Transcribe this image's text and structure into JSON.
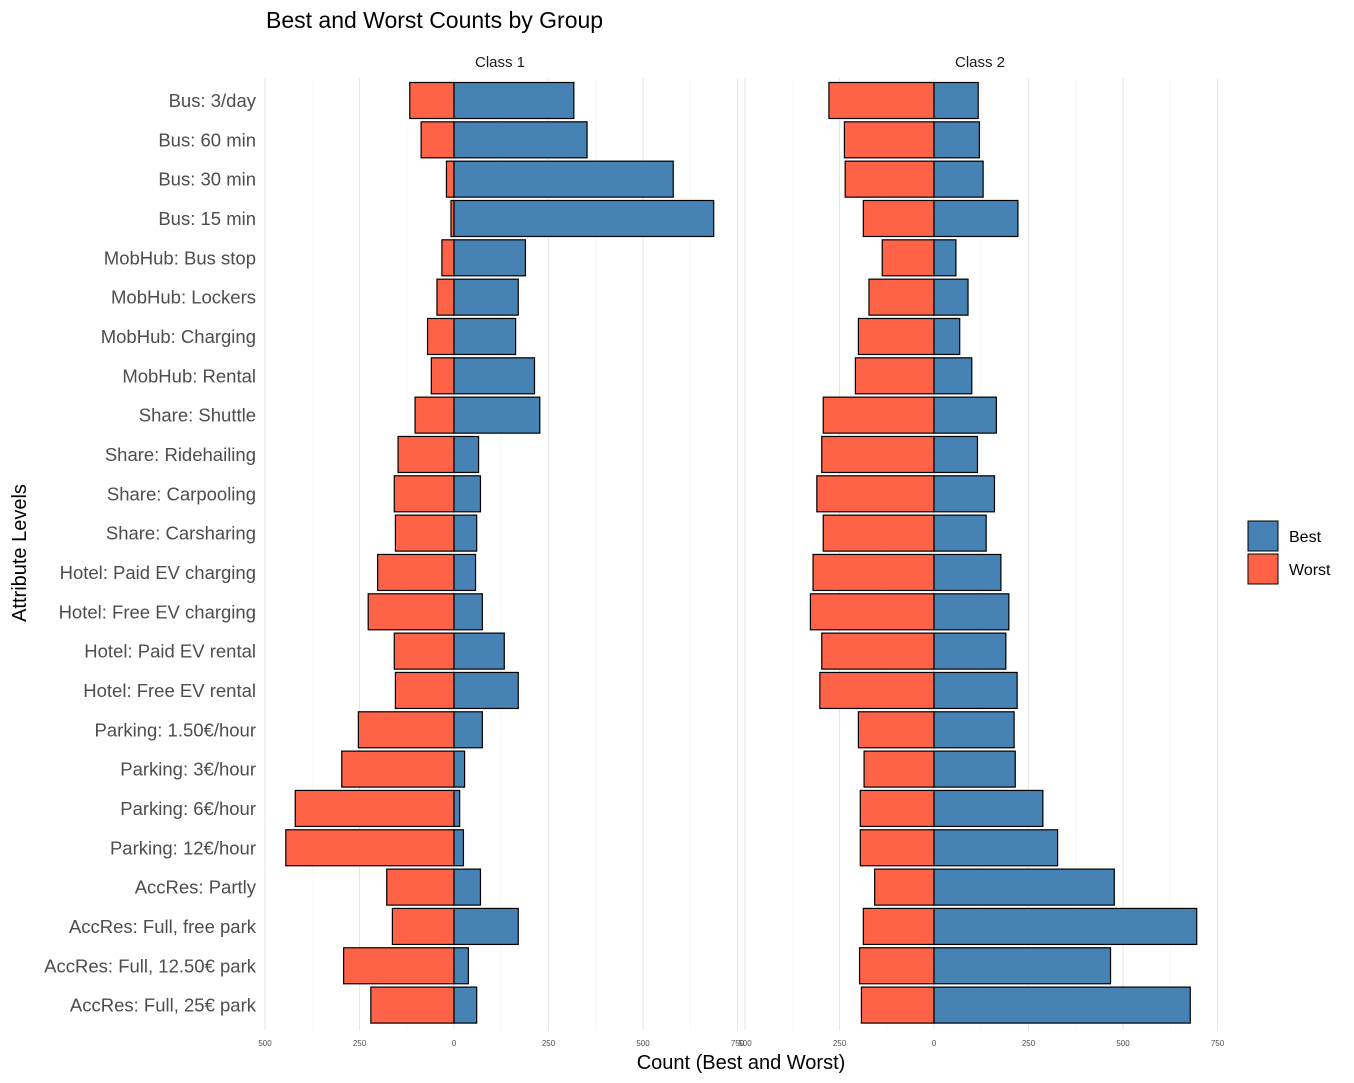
{
  "chart_data": {
    "type": "bar",
    "orientation": "horizontal",
    "title": "Best and Worst Counts by Group",
    "xlabel": "Count (Best and Worst)",
    "ylabel": "Attribute Levels",
    "xlim": [
      -500,
      750
    ],
    "x_ticks": [
      "500",
      "250",
      "0",
      "250",
      "500",
      "750"
    ],
    "grid": true,
    "legend": {
      "position": "right",
      "entries": [
        {
          "label": "Best",
          "color": "#4682B4"
        },
        {
          "label": "Worst",
          "color": "#FF6347"
        }
      ]
    },
    "colors": {
      "Best": "#4682B4",
      "Worst": "#FF6347"
    },
    "categories": [
      "Bus: 3/day",
      "Bus: 60 min",
      "Bus: 30 min",
      "Bus: 15 min",
      "MobHub: Bus stop",
      "MobHub: Lockers",
      "MobHub: Charging",
      "MobHub: Rental",
      "Share: Shuttle",
      "Share: Ridehailing",
      "Share: Carpooling",
      "Share: Carsharing",
      "Hotel: Paid EV charging",
      "Hotel: Free EV charging",
      "Hotel: Paid EV rental",
      "Hotel: Free EV rental",
      "Parking: 1.50€/hour",
      "Parking: 3€/hour",
      "Parking: 6€/hour",
      "Parking: 12€/hour",
      "AccRes: Partly",
      "AccRes: Full, free park",
      "AccRes: Full, 12.50€ park",
      "AccRes: Full, 25€ park"
    ],
    "panels": [
      {
        "name": "Class 1",
        "series": [
          {
            "name": "Best",
            "values": [
              317,
              352,
              580,
              687,
              189,
              170,
              163,
              213,
              227,
              65,
              70,
              60,
              57,
              75,
              133,
              170,
              75,
              28,
              15,
              25,
              70,
              170,
              38,
              60
            ]
          },
          {
            "name": "Worst",
            "values": [
              117,
              87,
              20,
              8,
              32,
              45,
              70,
              60,
              103,
              148,
              158,
              155,
              202,
              227,
              158,
              155,
              253,
              297,
              420,
              445,
              178,
              163,
              292,
              220
            ]
          }
        ]
      },
      {
        "name": "Class 2",
        "series": [
          {
            "name": "Best",
            "values": [
              117,
              120,
              130,
              222,
              58,
              90,
              68,
              100,
              165,
              115,
              160,
              138,
              177,
              198,
              190,
              220,
              212,
              215,
              288,
              327,
              477,
              695,
              467,
              678
            ]
          },
          {
            "name": "Worst",
            "values": [
              278,
              237,
              235,
              187,
              137,
              172,
              200,
              208,
              293,
              297,
              310,
              293,
              320,
              327,
              297,
              302,
              200,
              185,
              195,
              195,
              157,
              187,
              197,
              192
            ]
          }
        ]
      }
    ]
  }
}
